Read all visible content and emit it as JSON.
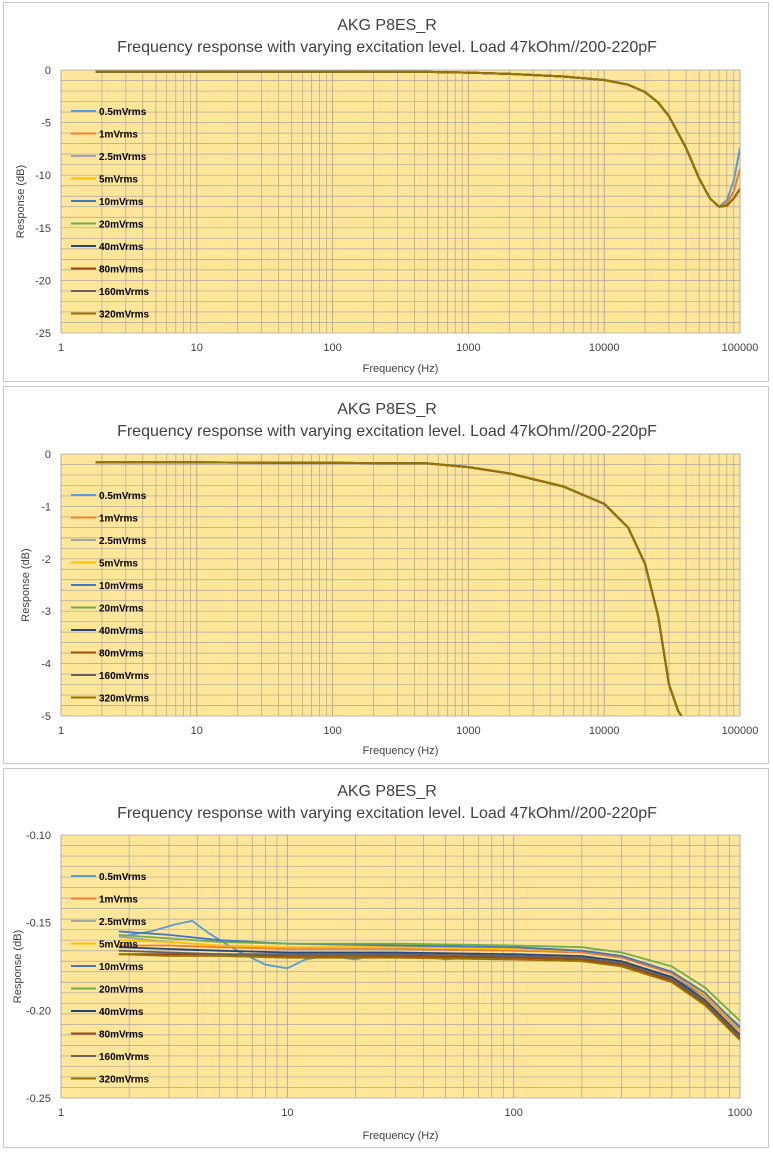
{
  "colors": {
    "plot_bg": "#FFE699",
    "grid": "#A6A6A6",
    "axis_text": "#404040",
    "title_text": "#404040"
  },
  "legend_labels": [
    "0.5mVrms",
    "1mVrms",
    "2.5mVrms",
    "5mVrms",
    "10mVrms",
    "20mVrms",
    "40mVrms",
    "80mVrms",
    "160mVrms",
    "320mVrms"
  ],
  "series_colors": [
    "#5B9BD5",
    "#ED7D31",
    "#A5A5A5",
    "#FFC000",
    "#4472C4",
    "#70AD47",
    "#264478",
    "#9E480E",
    "#636363",
    "#997300"
  ],
  "chart_data": [
    {
      "type": "line",
      "title": "AKG P8ES_R",
      "subtitle": "Frequency response with varying excitation level. Load 47kOhm//200-220pF",
      "xlabel": "Frequency (Hz)",
      "ylabel": "Response (dB)",
      "x_scale": "log",
      "xlim": [
        1,
        100000
      ],
      "ylim": [
        -25,
        0
      ],
      "x_ticks": [
        "1",
        "10",
        "100",
        "1000",
        "10000",
        "100000"
      ],
      "y_ticks": [
        "0",
        "-5",
        "-10",
        "-15",
        "-20",
        "-25"
      ],
      "y_tick_values": [
        0,
        -5,
        -10,
        -15,
        -20,
        -25
      ],
      "grid": true,
      "legend_position": "left",
      "base_curve": {
        "x": [
          1.8,
          10,
          100,
          500,
          1000,
          2000,
          5000,
          10000,
          15000,
          20000,
          25000,
          30000,
          40000,
          50000,
          60000,
          70000
        ],
        "y": [
          -0.16,
          -0.16,
          -0.17,
          -0.18,
          -0.25,
          -0.37,
          -0.62,
          -0.95,
          -1.4,
          -2.1,
          -3.1,
          -4.4,
          -7.4,
          -10.3,
          -12.2,
          -13.0
        ]
      },
      "tail_curves": [
        {
          "x": [
            70000,
            80000,
            90000,
            100000
          ],
          "y": [
            -13.0,
            -12.4,
            -10.5,
            -7.4
          ]
        },
        {
          "x": [
            70000,
            80000,
            90000,
            100000
          ],
          "y": [
            -13.0,
            -12.7,
            -11.5,
            -9.4
          ]
        },
        {
          "x": [
            70000,
            80000,
            90000,
            100000
          ],
          "y": [
            -13.0,
            -12.9,
            -12.2,
            -11.3
          ]
        }
      ]
    },
    {
      "type": "line",
      "title": "AKG P8ES_R",
      "subtitle": "Frequency response with varying excitation level. Load 47kOhm//200-220pF",
      "xlabel": "Frequency (Hz)",
      "ylabel": "Response (dB)",
      "x_scale": "log",
      "xlim": [
        1,
        100000
      ],
      "ylim": [
        -5,
        0
      ],
      "x_ticks": [
        "1",
        "10",
        "100",
        "1000",
        "10000",
        "100000"
      ],
      "y_ticks": [
        "0",
        "-1",
        "-2",
        "-3",
        "-4",
        "-5"
      ],
      "y_tick_values": [
        0,
        -1,
        -2,
        -3,
        -4,
        -5
      ],
      "grid": true,
      "legend_position": "left",
      "base_curve": {
        "x": [
          1.8,
          10,
          100,
          500,
          1000,
          2000,
          5000,
          10000,
          15000,
          20000,
          25000,
          30000,
          35000,
          37000
        ],
        "y": [
          -0.16,
          -0.16,
          -0.17,
          -0.18,
          -0.25,
          -0.37,
          -0.62,
          -0.95,
          -1.4,
          -2.1,
          -3.1,
          -4.4,
          -4.9,
          -5.0
        ]
      }
    },
    {
      "type": "line",
      "title": "AKG P8ES_R",
      "subtitle": "Frequency response with varying excitation level. Load 47kOhm//200-220pF",
      "xlabel": "Frequency (Hz)",
      "ylabel": "Response (dB)",
      "x_scale": "log",
      "xlim": [
        1,
        1000
      ],
      "ylim": [
        -0.25,
        -0.1
      ],
      "x_ticks": [
        "1",
        "10",
        "100",
        "1000"
      ],
      "y_ticks": [
        "-0.10",
        "-0.15",
        "-0.20",
        "-0.25"
      ],
      "y_tick_values": [
        -0.1,
        -0.15,
        -0.2,
        -0.25
      ],
      "grid": true,
      "legend_position": "left",
      "series": [
        {
          "name": "0.5mVrms",
          "x": [
            1.8,
            2.5,
            3.2,
            3.8,
            4.5,
            6,
            8,
            10,
            12,
            15,
            20,
            25,
            30,
            40,
            50,
            60,
            70,
            80,
            100,
            150,
            200,
            300,
            500,
            700,
            1000
          ],
          "y": [
            -0.158,
            -0.155,
            -0.151,
            -0.149,
            -0.156,
            -0.166,
            -0.174,
            -0.176,
            -0.171,
            -0.169,
            -0.171,
            -0.168,
            -0.17,
            -0.169,
            -0.171,
            -0.17,
            -0.169,
            -0.17,
            -0.169,
            -0.17,
            -0.171,
            -0.173,
            -0.181,
            -0.192,
            -0.209
          ]
        },
        {
          "name": "1mVrms",
          "x": [
            1.8,
            3,
            5,
            10,
            30,
            100,
            200,
            300,
            500,
            700,
            1000
          ],
          "y": [
            -0.163,
            -0.163,
            -0.164,
            -0.165,
            -0.165,
            -0.166,
            -0.167,
            -0.17,
            -0.179,
            -0.192,
            -0.212
          ]
        },
        {
          "name": "2.5mVrms",
          "x": [
            1.8,
            3,
            5,
            10,
            30,
            100,
            200,
            300,
            500,
            700,
            1000
          ],
          "y": [
            -0.158,
            -0.161,
            -0.163,
            -0.164,
            -0.164,
            -0.165,
            -0.166,
            -0.169,
            -0.178,
            -0.191,
            -0.211
          ]
        },
        {
          "name": "5mVrms",
          "x": [
            1.8,
            3,
            5,
            10,
            30,
            100,
            200,
            300,
            500,
            700,
            1000
          ],
          "y": [
            -0.16,
            -0.161,
            -0.163,
            -0.164,
            -0.164,
            -0.165,
            -0.166,
            -0.169,
            -0.178,
            -0.191,
            -0.211
          ]
        },
        {
          "name": "10mVrms",
          "x": [
            1.8,
            3,
            5,
            10,
            30,
            100,
            200,
            300,
            500,
            700,
            1000
          ],
          "y": [
            -0.155,
            -0.157,
            -0.16,
            -0.162,
            -0.163,
            -0.164,
            -0.166,
            -0.169,
            -0.178,
            -0.19,
            -0.21
          ]
        },
        {
          "name": "20mVrms",
          "x": [
            1.8,
            3,
            5,
            10,
            30,
            100,
            200,
            300,
            500,
            700,
            1000
          ],
          "y": [
            -0.157,
            -0.159,
            -0.161,
            -0.162,
            -0.162,
            -0.163,
            -0.164,
            -0.167,
            -0.175,
            -0.187,
            -0.206
          ]
        },
        {
          "name": "40mVrms",
          "x": [
            1.8,
            3,
            5,
            10,
            30,
            100,
            200,
            300,
            500,
            700,
            1000
          ],
          "y": [
            -0.164,
            -0.165,
            -0.166,
            -0.167,
            -0.167,
            -0.168,
            -0.169,
            -0.172,
            -0.181,
            -0.194,
            -0.214
          ]
        },
        {
          "name": "80mVrms",
          "x": [
            1.8,
            3,
            5,
            10,
            30,
            100,
            200,
            300,
            500,
            700,
            1000
          ],
          "y": [
            -0.168,
            -0.168,
            -0.168,
            -0.169,
            -0.169,
            -0.17,
            -0.171,
            -0.174,
            -0.183,
            -0.196,
            -0.216
          ]
        },
        {
          "name": "160mVrms",
          "x": [
            1.8,
            3,
            5,
            10,
            30,
            100,
            200,
            300,
            500,
            700,
            1000
          ],
          "y": [
            -0.166,
            -0.167,
            -0.168,
            -0.168,
            -0.168,
            -0.169,
            -0.17,
            -0.173,
            -0.182,
            -0.195,
            -0.215
          ]
        },
        {
          "name": "320mVrms",
          "x": [
            1.8,
            3,
            5,
            10,
            30,
            100,
            200,
            300,
            500,
            700,
            1000
          ],
          "y": [
            -0.168,
            -0.169,
            -0.169,
            -0.17,
            -0.17,
            -0.171,
            -0.172,
            -0.175,
            -0.184,
            -0.197,
            -0.217
          ]
        }
      ]
    }
  ]
}
